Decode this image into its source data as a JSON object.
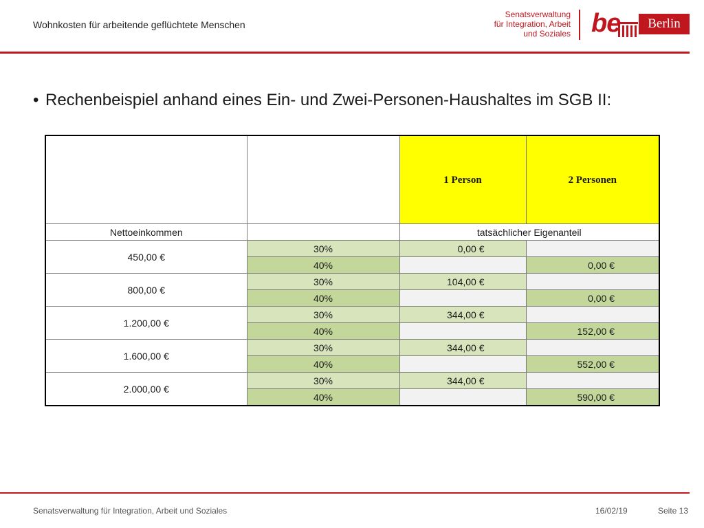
{
  "header": {
    "title": "Wohnkosten für arbeitende geflüchtete Menschen",
    "logo_line1": "Senatsverwaltung",
    "logo_line2": "für Integration, Arbeit",
    "logo_line3": "und Soziales",
    "logo_be": "be",
    "logo_berlin": "Berlin"
  },
  "bullet_text": "Rechenbeispiel anhand eines Ein- und Zwei-Personen-Haushaltes im SGB II:",
  "table": {
    "col_1person": "1 Person",
    "col_2persons": "2 Personen",
    "label_netto": "Nettoeinkommen",
    "label_eigenanteil": "tatsächlicher Eigenanteil",
    "rows": [
      {
        "income": "450,00 €",
        "p30": "30%",
        "p40": "40%",
        "v30": "0,00 €",
        "v40": "0,00 €"
      },
      {
        "income": "800,00 €",
        "p30": "30%",
        "p40": "40%",
        "v30": "104,00 €",
        "v40": "0,00 €"
      },
      {
        "income": "1.200,00 €",
        "p30": "30%",
        "p40": "40%",
        "v30": "344,00 €",
        "v40": "152,00 €"
      },
      {
        "income": "1.600,00 €",
        "p30": "30%",
        "p40": "40%",
        "v30": "344,00 €",
        "v40": "552,00 €"
      },
      {
        "income": "2.000,00 €",
        "p30": "30%",
        "p40": "40%",
        "v30": "344,00 €",
        "v40": "590,00 €"
      }
    ]
  },
  "footer": {
    "org": "Senatsverwaltung für Integration, Arbeit und Soziales",
    "date": "16/02/19",
    "page": "Seite 13"
  },
  "colors": {
    "brand_red": "#c0161d",
    "header_yellow": "#ffff00",
    "green_light": "#d8e4bc",
    "green_dark": "#c4d79b"
  }
}
